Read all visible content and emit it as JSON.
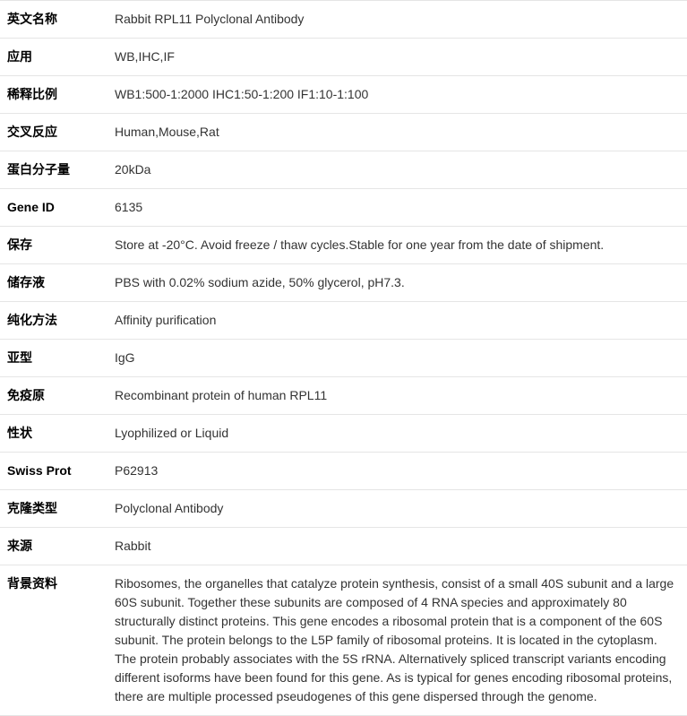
{
  "rows": [
    {
      "label": "英文名称",
      "value": "Rabbit RPL11 Polyclonal Antibody"
    },
    {
      "label": "应用",
      "value": "WB,IHC,IF"
    },
    {
      "label": "稀释比例",
      "value": "WB1:500-1:2000 IHC1:50-1:200 IF1:10-1:100"
    },
    {
      "label": "交叉反应",
      "value": "Human,Mouse,Rat"
    },
    {
      "label": "蛋白分子量",
      "value": "20kDa"
    },
    {
      "label": "Gene ID",
      "value": "6135"
    },
    {
      "label": "保存",
      "value": "Store at -20°C. Avoid freeze / thaw cycles.Stable for one year from the date of shipment."
    },
    {
      "label": "储存液",
      "value": "PBS with 0.02% sodium azide, 50% glycerol, pH7.3."
    },
    {
      "label": "纯化方法",
      "value": "Affinity purification"
    },
    {
      "label": "亚型",
      "value": "IgG"
    },
    {
      "label": "免疫原",
      "value": "Recombinant protein of human RPL11"
    },
    {
      "label": "性状",
      "value": "Lyophilized or Liquid"
    },
    {
      "label": "Swiss Prot",
      "value": "P62913"
    },
    {
      "label": "克隆类型",
      "value": "Polyclonal Antibody"
    },
    {
      "label": "来源",
      "value": "Rabbit"
    },
    {
      "label": "背景资料",
      "value": "Ribosomes, the organelles that catalyze protein synthesis, consist of a small 40S subunit and a large 60S subunit. Together these subunits are composed of 4 RNA species and approximately 80 structurally distinct proteins. This gene encodes a ribosomal protein that is a component of the 60S subunit. The protein belongs to the L5P family of ribosomal proteins. It is located in the cytoplasm. The protein probably associates with the 5S rRNA. Alternatively spliced transcript variants encoding different isoforms have been found for this gene. As is typical for genes encoding ribosomal proteins, there are multiple processed pseudogenes of this gene dispersed through the genome."
    }
  ]
}
